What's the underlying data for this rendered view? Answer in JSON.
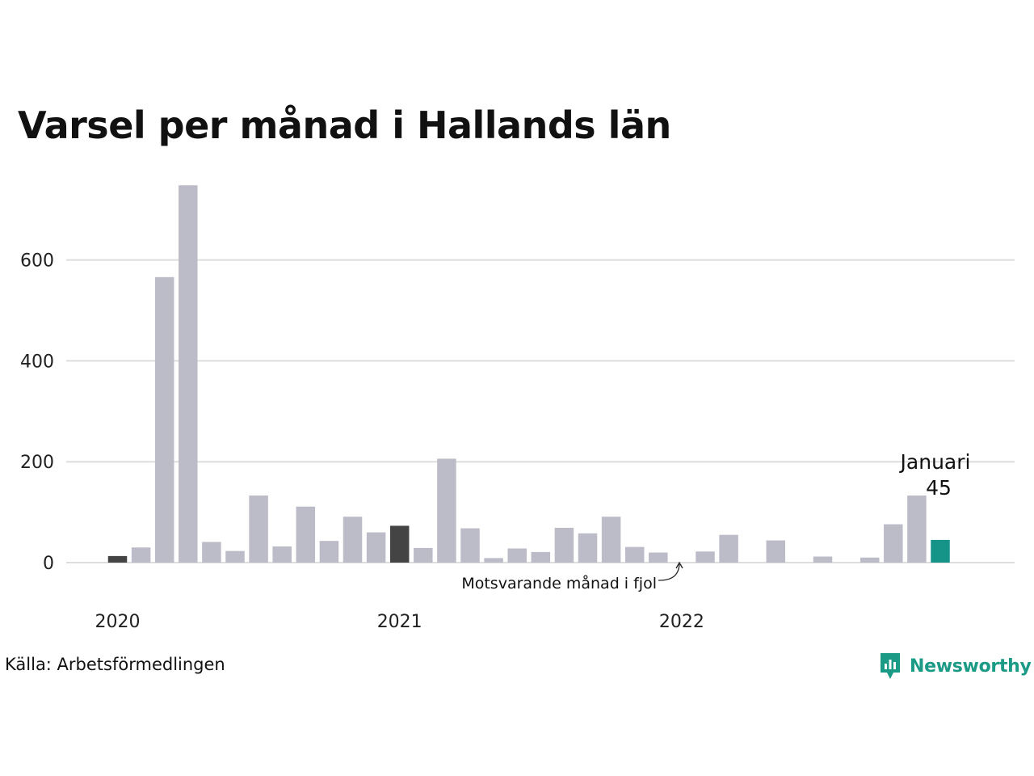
{
  "chart_data": {
    "type": "bar",
    "title": "Varsel per månad i Hallands län",
    "xlabel": "",
    "ylabel": "",
    "ylim": [
      0,
      750
    ],
    "yticks": [
      0,
      200,
      400,
      600
    ],
    "grid": true,
    "year_labels": [
      {
        "label": "2020",
        "index": 0
      },
      {
        "label": "2021",
        "index": 12
      },
      {
        "label": "2022",
        "index": 24
      }
    ],
    "series": [
      {
        "values": [
          13,
          30,
          566,
          748,
          41,
          23,
          133,
          32,
          111,
          43,
          91,
          60,
          73,
          29,
          206,
          68,
          9,
          28,
          21,
          69,
          58,
          91,
          31,
          20,
          0,
          22,
          55,
          0,
          44,
          0,
          12,
          0,
          10,
          76,
          133,
          45
        ]
      }
    ],
    "highlight_indices": [
      0,
      12
    ],
    "current_index": 35,
    "colors": {
      "default": "#bcbbc8",
      "highlight": "#444444",
      "current": "#169488",
      "grid": "#dddddd"
    },
    "annotations": {
      "previous_year_label": "Motsvarande månad i fjol",
      "current_month_label": "Januari",
      "current_value_label": "45"
    }
  },
  "footer": {
    "source": "Källa: Arbetsförmedlingen",
    "brand": "Newsworthy",
    "brand_icon": "newsworthy-logo-icon"
  }
}
